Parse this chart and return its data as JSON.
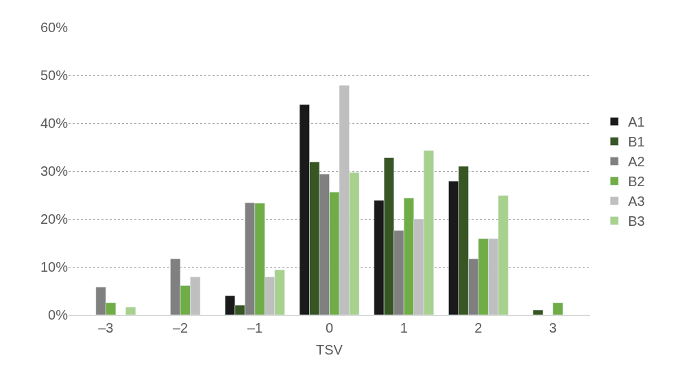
{
  "chart_data": {
    "type": "bar",
    "xlabel": "TSV",
    "categories": [
      "–3",
      "–2",
      "–1",
      "0",
      "1",
      "2",
      "3"
    ],
    "series": [
      {
        "name": "A1",
        "color": "#1a1a1a",
        "values": [
          null,
          null,
          4.0,
          43.9,
          23.9,
          27.9,
          null
        ]
      },
      {
        "name": "B1",
        "color": "#375623",
        "values": [
          null,
          null,
          2.0,
          31.9,
          32.8,
          31.0,
          1.0
        ]
      },
      {
        "name": "A2",
        "color": "#808080",
        "values": [
          5.8,
          11.7,
          23.4,
          29.4,
          17.6,
          11.7,
          null
        ]
      },
      {
        "name": "B2",
        "color": "#70ad47",
        "values": [
          2.5,
          6.1,
          23.3,
          25.6,
          24.4,
          15.9,
          2.5
        ]
      },
      {
        "name": "A3",
        "color": "#bfbfbf",
        "values": [
          null,
          7.9,
          7.9,
          47.9,
          20.0,
          15.9,
          null
        ]
      },
      {
        "name": "B3",
        "color": "#a9d18e",
        "values": [
          1.6,
          null,
          9.4,
          29.7,
          34.3,
          24.9,
          null
        ]
      }
    ],
    "ylim": [
      0,
      60
    ],
    "yticks": [
      {
        "value": 0,
        "label": "0%"
      },
      {
        "value": 10,
        "label": "10%"
      },
      {
        "value": 20,
        "label": "20%"
      },
      {
        "value": 30,
        "label": "30%"
      },
      {
        "value": 40,
        "label": "40%"
      },
      {
        "value": 50,
        "label": "50%"
      },
      {
        "value": 60,
        "label": "60%"
      }
    ],
    "grid": "y",
    "legend": "right"
  }
}
